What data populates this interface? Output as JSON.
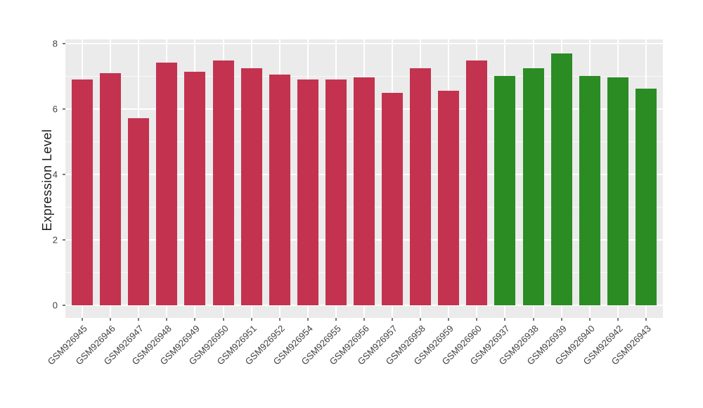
{
  "chart_data": {
    "type": "bar",
    "title": "",
    "xlabel": "",
    "ylabel": "Expression Level",
    "ylim": [
      0,
      8
    ],
    "y_ticks": [
      0,
      2,
      4,
      6,
      8
    ],
    "y_minor_ticks": [
      1,
      3,
      5,
      7
    ],
    "grid": "on",
    "legend_position": "none",
    "figure_background": "#FFFFFF",
    "panel_background": "#EBEBEB",
    "gridline_color": "#FFFFFF",
    "axis_text_color": "#404040",
    "axis_title_color": "#1A1A1A",
    "tick_mark_color": "#787878",
    "colors": {
      "group1": "#C3334F",
      "group2": "#2B8C24"
    },
    "categories": [
      "GSM926945",
      "GSM926946",
      "GSM926947",
      "GSM926948",
      "GSM926949",
      "GSM926950",
      "GSM926951",
      "GSM926952",
      "GSM926954",
      "GSM926955",
      "GSM926956",
      "GSM926957",
      "GSM926958",
      "GSM926959",
      "GSM926960",
      "GSM926937",
      "GSM926938",
      "GSM926939",
      "GSM926940",
      "GSM926942",
      "GSM926943"
    ],
    "values": [
      6.9,
      7.1,
      5.72,
      7.42,
      7.14,
      7.5,
      7.26,
      7.06,
      6.9,
      6.9,
      6.98,
      6.5,
      7.26,
      6.57,
      7.5,
      7.02,
      7.26,
      7.7,
      7.02,
      6.97,
      6.62
    ],
    "bar_groups": [
      "group1",
      "group1",
      "group1",
      "group1",
      "group1",
      "group1",
      "group1",
      "group1",
      "group1",
      "group1",
      "group1",
      "group1",
      "group1",
      "group1",
      "group1",
      "group2",
      "group2",
      "group2",
      "group2",
      "group2",
      "group2"
    ]
  }
}
